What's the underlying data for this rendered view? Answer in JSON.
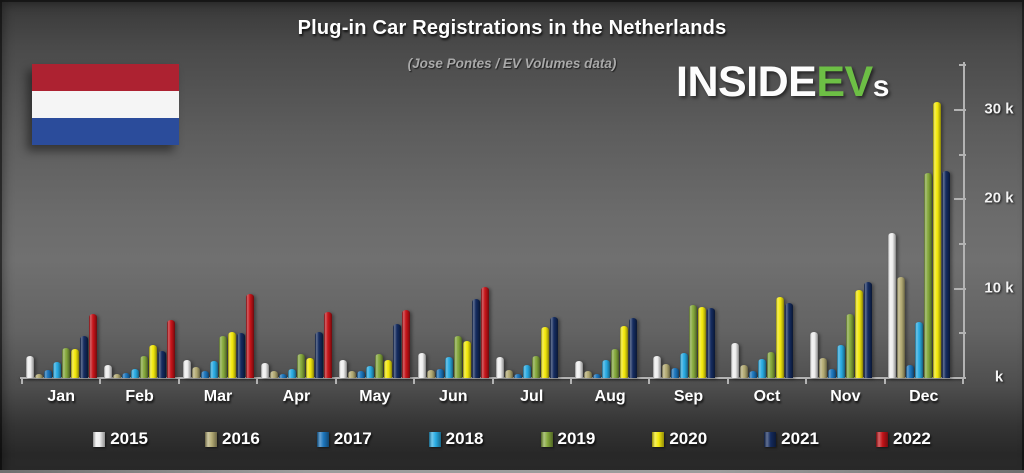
{
  "title": "Plug-in Car Registrations in the Netherlands",
  "subtitle": "(Jose Pontes / EV Volumes data)",
  "logo": {
    "inside": "INSIDE",
    "ev": "EV",
    "s": "s",
    "green": "#6dbf45",
    "white": "#fdfdfd"
  },
  "flag": {
    "name": "Netherlands",
    "red": "#ad2231",
    "white": "#f5f5f5",
    "blue": "#2b4c9b"
  },
  "chart_data": {
    "type": "bar",
    "title": "Plug-in Car Registrations in the Netherlands",
    "subtitle": "(Jose Pontes / EV Volumes data)",
    "unit": "thousands of registrations",
    "categories": [
      "Jan",
      "Feb",
      "Mar",
      "Apr",
      "May",
      "Jun",
      "Jul",
      "Aug",
      "Sep",
      "Oct",
      "Nov",
      "Dec"
    ],
    "series": [
      {
        "name": "2015",
        "color": "#f0f0f0",
        "values": [
          2.5,
          1.4,
          2.0,
          1.7,
          2.0,
          2.8,
          2.3,
          1.9,
          2.5,
          3.9,
          5.2,
          16.2
        ]
      },
      {
        "name": "2016",
        "color": "#b5ac75",
        "values": [
          0.5,
          0.45,
          1.2,
          0.8,
          0.75,
          0.9,
          0.9,
          0.8,
          1.6,
          1.5,
          2.2,
          11.3
        ]
      },
      {
        "name": "2017",
        "color": "#1b75bc",
        "values": [
          0.9,
          0.55,
          0.75,
          0.4,
          0.8,
          1.0,
          0.45,
          0.5,
          1.1,
          0.8,
          1.0,
          1.5
        ]
      },
      {
        "name": "2018",
        "color": "#29abe2",
        "values": [
          1.75,
          1.0,
          1.9,
          1.0,
          1.3,
          2.4,
          1.45,
          2.0,
          2.8,
          2.1,
          3.7,
          6.3
        ]
      },
      {
        "name": "2019",
        "color": "#85a83c",
        "values": [
          3.4,
          2.5,
          4.7,
          2.7,
          2.7,
          4.7,
          2.5,
          3.3,
          8.2,
          2.9,
          7.2,
          23.0
        ]
      },
      {
        "name": "2020",
        "color": "#f3e90c",
        "values": [
          3.2,
          3.7,
          5.2,
          2.2,
          2.0,
          4.1,
          5.75,
          5.8,
          7.9,
          9.1,
          9.9,
          30.9
        ]
      },
      {
        "name": "2021",
        "color": "#132a5d",
        "values": [
          4.7,
          3.0,
          5.0,
          5.2,
          6.1,
          8.9,
          6.8,
          6.7,
          7.8,
          8.4,
          10.7,
          23.2
        ]
      },
      {
        "name": "2022",
        "color": "#c41318",
        "values": [
          7.2,
          6.5,
          9.4,
          7.4,
          7.6,
          10.2,
          null,
          null,
          null,
          null,
          null,
          null
        ]
      }
    ],
    "ylim": [
      0,
      35
    ],
    "yticks": [
      {
        "value": 30,
        "label": "30 k"
      },
      {
        "value": 20,
        "label": "20 k"
      },
      {
        "value": 10,
        "label": "10 k"
      },
      {
        "value": 0,
        "label": "k"
      }
    ],
    "minor_ytick_step": 5,
    "grid": false,
    "legend_position": "bottom"
  }
}
